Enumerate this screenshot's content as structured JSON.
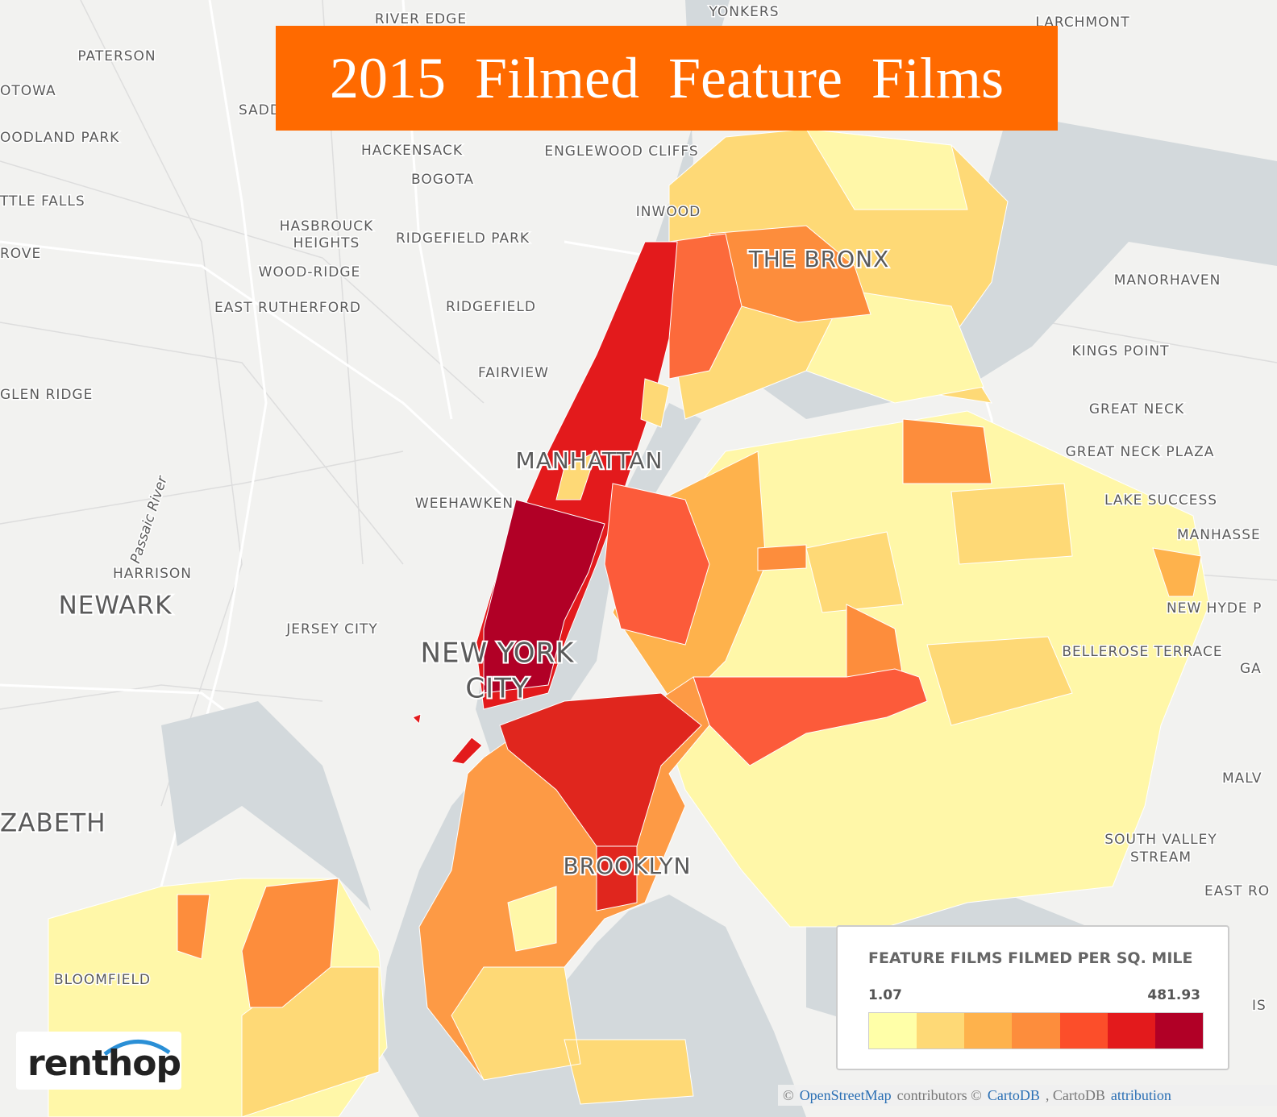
{
  "header": {
    "title": "2015 Filmed Feature Films"
  },
  "places": [
    "RIVER EDGE",
    "YONKERS",
    "LARCHMONT",
    "PATERSON",
    "OTOWA",
    "SADD",
    "OODLAND PARK",
    "HACKENSACK",
    "ENGLEWOOD CLIFFS",
    "BOGOTA",
    "TTLE FALLS",
    "INWOOD",
    "HASBROUCK",
    "HEIGHTS",
    "RIDGEFIELD PARK",
    "ROVE",
    "MANORHAVEN",
    "WOOD-RIDGE",
    "EAST RUTHERFORD",
    "RIDGEFIELD",
    "KINGS POINT",
    "FAIRVIEW",
    "GLEN RIDGE",
    "GREAT NECK",
    "GREAT NECK PLAZA",
    "WEEHAWKEN",
    "LAKE SUCCESS",
    "MANHASSE",
    "HARRISON",
    "NEW HYDE P",
    "JERSEY CITY",
    "BELLEROSE TERRACE",
    "GA",
    "MALV",
    "SOUTH VALLEY",
    "STREAM",
    "EAST RO",
    "BLOOMFIELD",
    "IS"
  ],
  "big_places": [
    "THE BRONX",
    "MANHATTAN",
    "NEWARK",
    "NEW YORK",
    "CITY",
    "ZABETH",
    "BROOKLYN"
  ],
  "river": "Passaic River",
  "legend": {
    "title": "FEATURE FILMS FILMED PER SQ. MILE",
    "min": 1.07,
    "max": 481.93,
    "colors": [
      "#ffffa8",
      "#fed976",
      "#feb24c",
      "#fd8d3c",
      "#fc4e2a",
      "#e31a1c",
      "#b10026"
    ]
  },
  "attribution": [
    "©",
    "OpenStreetMap",
    "contributors ©",
    "CartoDB",
    ", CartoDB",
    "attribution"
  ],
  "logo": "renthop"
}
